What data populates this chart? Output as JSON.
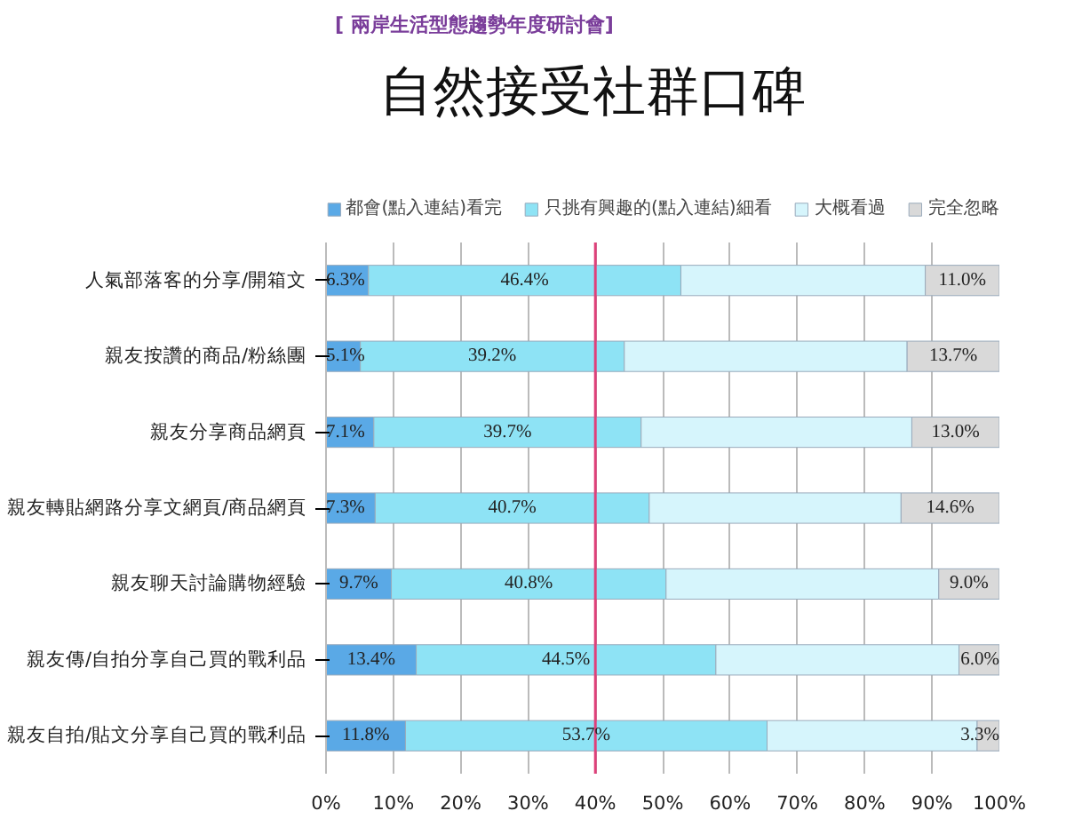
{
  "chart_data": {
    "type": "bar",
    "orientation": "horizontal",
    "stacked": true,
    "title": "自然接受社群口碑",
    "subtitle": "[ 兩岸生活型態趨勢年度研討會]",
    "categories": [
      "人氣部落客的分享/開箱文",
      "親友按讚的商品/粉絲團",
      "親友分享商品網頁",
      "親友轉貼網路分享文網頁/商品網頁",
      "親友聊天討論購物經驗",
      "親友傳/自拍分享自己買的戰利品",
      "親友自拍/貼文分享自己買的戰利品"
    ],
    "series": [
      {
        "name": "都會(點入連結)看完",
        "color": "#5aa9e6",
        "values": [
          6.3,
          5.1,
          7.1,
          7.3,
          9.7,
          13.4,
          11.8
        ],
        "value_labels": [
          "6.3%",
          "5.1%",
          "7.1%",
          "7.3%",
          "9.7%",
          "13.4%",
          "11.8%"
        ]
      },
      {
        "name": "只挑有興趣的(點入連結)細看",
        "color": "#8ee3f5",
        "values": [
          46.4,
          39.2,
          39.7,
          40.7,
          40.8,
          44.5,
          53.7
        ],
        "value_labels": [
          "46.4%",
          "39.2%",
          "39.7%",
          "40.7%",
          "40.8%",
          "44.5%",
          "53.7%"
        ]
      },
      {
        "name": "大概看過",
        "color": "#d6f5fc",
        "values": [
          36.3,
          42.0,
          40.2,
          37.4,
          40.5,
          36.1,
          31.2
        ]
      },
      {
        "name": "完全忽略",
        "color": "#d9d9d9",
        "values": [
          11.0,
          13.7,
          13.0,
          14.6,
          9.0,
          6.0,
          3.3
        ],
        "value_labels": [
          "11.0%",
          "13.7%",
          "13.0%",
          "14.6%",
          "9.0%",
          "6.0%",
          "3.3%"
        ]
      }
    ],
    "xlim": [
      0,
      100
    ],
    "xticks": [
      {
        "value": 0,
        "label": "0%"
      },
      {
        "value": 10,
        "label": "10%"
      },
      {
        "value": 20,
        "label": "20%"
      },
      {
        "value": 30,
        "label": "30%"
      },
      {
        "value": 40,
        "label": "40%"
      },
      {
        "value": 50,
        "label": "50%"
      },
      {
        "value": 60,
        "label": "60%"
      },
      {
        "value": 70,
        "label": "70%"
      },
      {
        "value": 80,
        "label": "80%"
      },
      {
        "value": 90,
        "label": "90%"
      },
      {
        "value": 100,
        "label": "100%"
      }
    ],
    "ref_lines": [
      {
        "axis": "x",
        "value": 40,
        "color": "#e0407a"
      }
    ],
    "grid": "x",
    "legend": "top"
  }
}
